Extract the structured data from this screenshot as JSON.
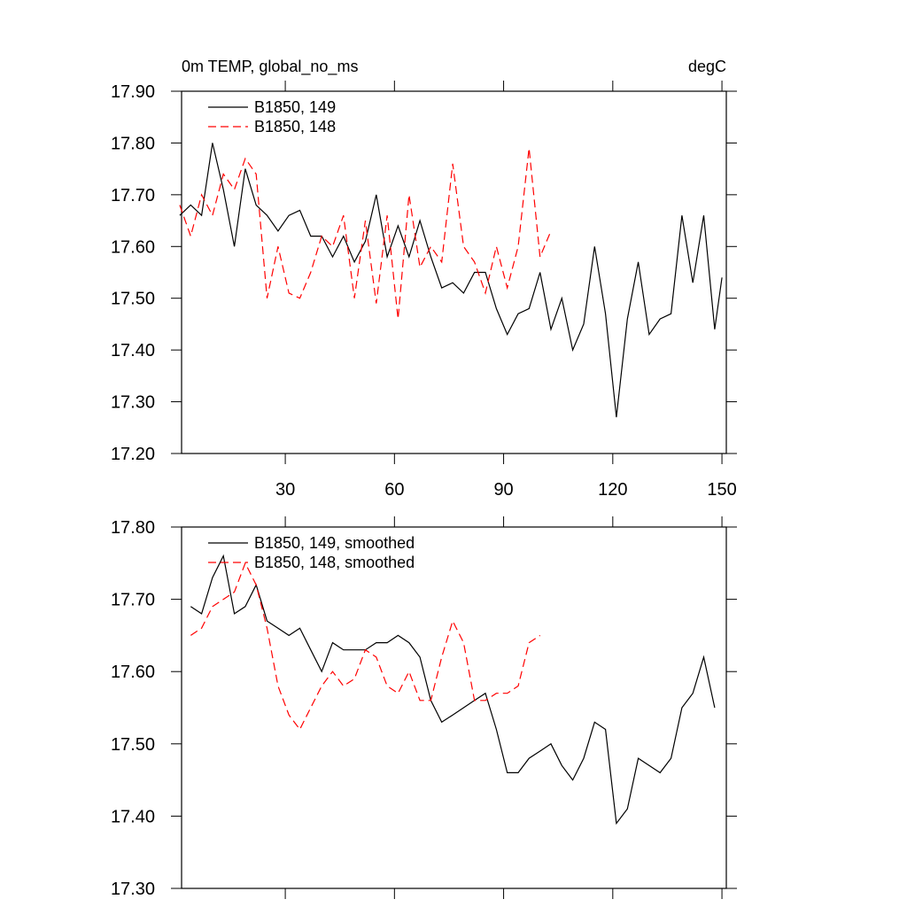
{
  "chart_data": [
    {
      "type": "line",
      "title": "0m TEMP, global_no_ms",
      "subtitle": "degC",
      "x": [
        1,
        4,
        7,
        10,
        13,
        16,
        19,
        22,
        25,
        28,
        31,
        34,
        37,
        40,
        43,
        46,
        49,
        52,
        55,
        58,
        61,
        64,
        67,
        70,
        73,
        76,
        79,
        82,
        85,
        88,
        91,
        94,
        97,
        100,
        103,
        106,
        109,
        112,
        115,
        118,
        121,
        124,
        127,
        130,
        133,
        136,
        139,
        142,
        145,
        148,
        150
      ],
      "series": [
        {
          "name": "B1850, 149",
          "color": "#000000",
          "dashed": false,
          "values": [
            17.66,
            17.68,
            17.66,
            17.8,
            17.71,
            17.6,
            17.75,
            17.68,
            17.66,
            17.63,
            17.66,
            17.67,
            17.62,
            17.62,
            17.58,
            17.62,
            17.57,
            17.61,
            17.7,
            17.58,
            17.64,
            17.58,
            17.65,
            17.58,
            17.52,
            17.53,
            17.51,
            17.55,
            17.55,
            17.48,
            17.43,
            17.47,
            17.48,
            17.55,
            17.44,
            17.5,
            17.4,
            17.45,
            17.6,
            17.47,
            17.27,
            17.46,
            17.57,
            17.43,
            17.46,
            17.47,
            17.66,
            17.53,
            17.66,
            17.44,
            17.54
          ]
        },
        {
          "name": "B1850, 148",
          "color": "#ff0000",
          "dashed": true,
          "values": [
            17.68,
            17.62,
            17.7,
            17.66,
            17.74,
            17.71,
            17.77,
            17.74,
            17.5,
            17.6,
            17.51,
            17.5,
            17.55,
            17.62,
            17.6,
            17.66,
            17.5,
            17.65,
            17.49,
            17.66,
            17.46,
            17.7,
            17.56,
            17.6,
            17.57,
            17.76,
            17.6,
            17.57,
            17.51,
            17.6,
            17.52,
            17.6,
            17.79,
            17.58,
            17.63,
            null,
            null,
            null,
            null,
            null,
            null,
            null,
            null,
            null,
            null,
            null,
            null,
            null,
            null,
            null,
            null
          ]
        }
      ],
      "xlim": [
        1.5,
        151.2
      ],
      "xticks": [
        30,
        60,
        90,
        120,
        150
      ],
      "xtick_labels": true,
      "ylim": [
        17.2,
        17.9
      ],
      "yticks": [
        {
          "value": 17.2,
          "label": "17.20"
        },
        {
          "value": 17.3,
          "label": "17.30"
        },
        {
          "value": 17.4,
          "label": "17.40"
        },
        {
          "value": 17.5,
          "label": "17.50"
        },
        {
          "value": 17.6,
          "label": "17.60"
        },
        {
          "value": 17.7,
          "label": "17.70"
        },
        {
          "value": 17.8,
          "label": "17.80"
        },
        {
          "value": 17.9,
          "label": "17.90"
        }
      ],
      "legend": "upper-left"
    },
    {
      "type": "line",
      "x": [
        1,
        4,
        7,
        10,
        13,
        16,
        19,
        22,
        25,
        28,
        31,
        34,
        37,
        40,
        43,
        46,
        49,
        52,
        55,
        58,
        61,
        64,
        67,
        70,
        73,
        76,
        79,
        82,
        85,
        88,
        91,
        94,
        97,
        100,
        103,
        106,
        109,
        112,
        115,
        118,
        121,
        124,
        127,
        130,
        133,
        136,
        139,
        142,
        145,
        148,
        150
      ],
      "series": [
        {
          "name": "B1850, 149, smoothed",
          "color": "#000000",
          "dashed": false,
          "values": [
            null,
            17.69,
            17.68,
            17.73,
            17.76,
            17.68,
            17.69,
            17.72,
            17.67,
            17.66,
            17.65,
            17.66,
            17.63,
            17.6,
            17.64,
            17.63,
            17.63,
            17.63,
            17.64,
            17.64,
            17.65,
            17.64,
            17.62,
            17.56,
            17.53,
            17.54,
            17.55,
            17.56,
            17.57,
            17.52,
            17.46,
            17.46,
            17.48,
            17.49,
            17.5,
            17.47,
            17.45,
            17.48,
            17.53,
            17.52,
            17.39,
            17.41,
            17.48,
            17.47,
            17.46,
            17.48,
            17.55,
            17.57,
            17.62,
            17.55,
            null
          ]
        },
        {
          "name": "B1850, 148, smoothed",
          "color": "#ff0000",
          "dashed": true,
          "values": [
            null,
            17.65,
            17.66,
            17.69,
            17.7,
            17.71,
            17.75,
            17.72,
            17.66,
            17.58,
            17.54,
            17.52,
            17.55,
            17.58,
            17.6,
            17.58,
            17.59,
            17.63,
            17.62,
            17.58,
            17.57,
            17.6,
            17.56,
            17.56,
            17.62,
            17.67,
            17.64,
            17.56,
            17.56,
            17.57,
            17.57,
            17.58,
            17.64,
            17.65,
            null,
            null,
            null,
            null,
            null,
            null,
            null,
            null,
            null,
            null,
            null,
            null,
            null,
            null,
            null,
            null,
            null
          ]
        }
      ],
      "xlim": [
        1.5,
        151.2
      ],
      "xticks": [
        30,
        60,
        90,
        120,
        150
      ],
      "xtick_labels": false,
      "ylim": [
        17.3,
        17.8
      ],
      "yticks": [
        {
          "value": 17.3,
          "label": "17.30"
        },
        {
          "value": 17.4,
          "label": "17.40"
        },
        {
          "value": 17.5,
          "label": "17.50"
        },
        {
          "value": 17.6,
          "label": "17.60"
        },
        {
          "value": 17.7,
          "label": "17.70"
        },
        {
          "value": 17.8,
          "label": "17.80"
        }
      ],
      "legend": "upper-left"
    }
  ]
}
